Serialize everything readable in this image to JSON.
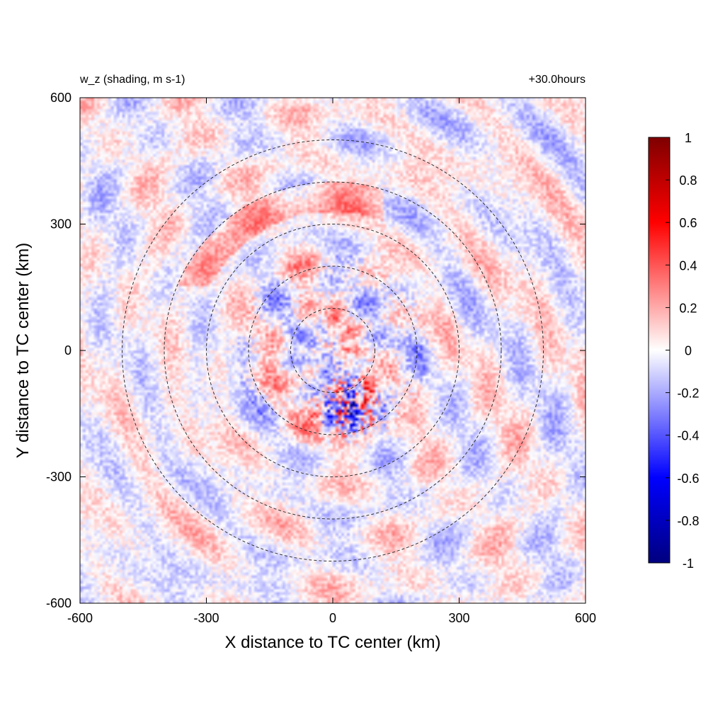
{
  "chart_data": {
    "type": "heatmap",
    "title": "w_z (shading, m s-1)",
    "time_label": "+30.0hours",
    "xlabel": "X distance to TC center (km)",
    "ylabel": "Y distance to TC center (km)",
    "xlim": [
      -600,
      600
    ],
    "ylim": [
      -600,
      600
    ],
    "xticks": [
      -600,
      -300,
      0,
      300,
      600
    ],
    "yticks": [
      -600,
      -300,
      0,
      300,
      600
    ],
    "colorbar": {
      "min": -1,
      "max": 1,
      "ticks": [
        "1",
        "0.8",
        "0.6",
        "0.4",
        "0.2",
        "0",
        "-0.2",
        "-0.4",
        "-0.6",
        "-0.8",
        "-1"
      ],
      "colors": [
        "#00007f",
        "#0000ff",
        "#ffffff",
        "#ff0000",
        "#7f0000"
      ]
    },
    "contour_radii_km": [
      100,
      200,
      300,
      400,
      500
    ],
    "contour_style": "dashed",
    "contour_color": "#333333",
    "grid": false
  }
}
